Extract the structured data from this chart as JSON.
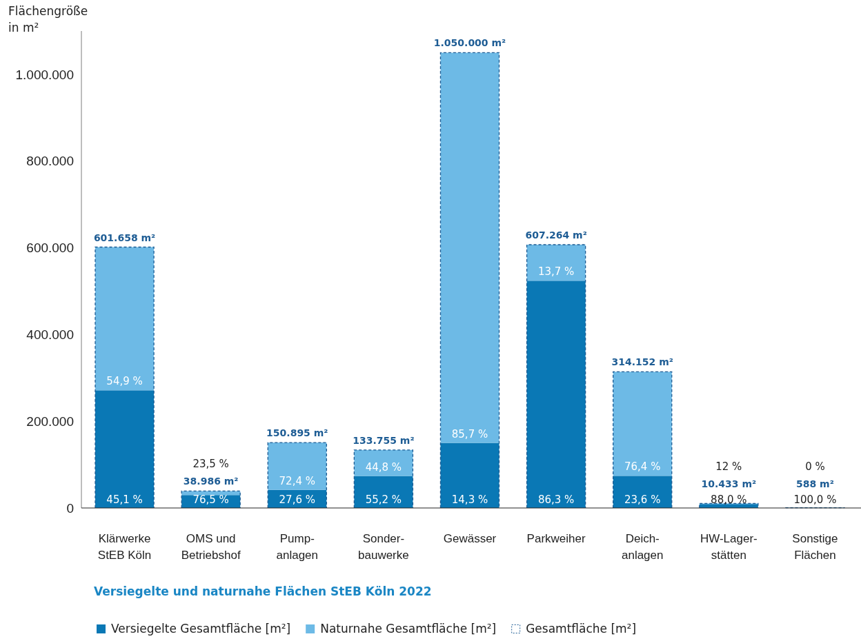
{
  "chart_data": {
    "type": "bar",
    "title": "Versiegelte und naturnahe Flächen StEB Köln 2022",
    "ylabel": "Flächengröße\nin m²",
    "categories": [
      "Klärwerke\nStEB Köln",
      "OMS und\nBetriebshof",
      "Pump-\nanlagen",
      "Sonder-\nbauwerke",
      "Gewässer",
      "Parkweiher",
      "Deich-\nanlagen",
      "HW-Lager-\nstätten",
      "Sonstige\nFlächen"
    ],
    "stacked": true,
    "series": [
      {
        "name": "Versiegelte Gesamtfläche [m²]",
        "color": "#0a78b5",
        "values": [
          271348,
          29824,
          41647,
          73833,
          150150,
          524069,
          74140,
          9181,
          588
        ]
      },
      {
        "name": "Naturnahe Gesamtfläche [m²]",
        "color": "#6dbae6",
        "values": [
          330310,
          9162,
          109248,
          59922,
          899850,
          83195,
          240012,
          1252,
          0
        ]
      }
    ],
    "totals": [
      "601.658 m²",
      "38.986 m²",
      "150.895 m²",
      "133.755 m²",
      "1.050.000 m²",
      "607.264 m²",
      "314.152 m²",
      "10.433 m²",
      "588 m²"
    ],
    "annotations": [
      {
        "text": "45,1 %",
        "x": "Klärwerke\nStEB Köln",
        "y": 0
      },
      {
        "text": "54,9 %",
        "x": "Klärwerke\nStEB Köln",
        "y": 271348
      },
      {
        "text": "76,5 %",
        "x": "OMS und\nBetriebshof",
        "y": 0
      },
      "23,5 %",
      {
        "text": "27,6 %",
        "x": "Pump-\nanlagen",
        "y": 0
      },
      {
        "text": "72,4 %",
        "x": "Pump-\nanlagen",
        "y": 41647
      },
      {
        "text": "55,2 %",
        "x": "Sonder-\nbauwerke",
        "y": 0
      },
      {
        "text": "44,8 %",
        "x": "Sonder-\nbauwerke",
        "y": 73833
      },
      {
        "text": "14,3 %",
        "x": "Gewässer",
        "y": 0
      },
      {
        "text": "85,7 %",
        "x": "Gewässer",
        "y": 150150
      },
      {
        "text": "86,3 %",
        "x": "Parkweiher",
        "y": 0
      },
      {
        "text": "13,7 %",
        "x": "Parkweiher",
        "y": 524069
      },
      {
        "text": "23,6 %",
        "x": "Deich-\nanlagen",
        "y": 0
      },
      {
        "text": "76,4 %",
        "x": "Deich-\nanlagen",
        "y": 74140
      },
      {
        "text": "88,0 %",
        "x": "HW-Lager-\nstätten",
        "y": 0
      },
      "12 %",
      {
        "text": "100,0 %",
        "x": "Sonstige\nFlächen",
        "y": 0
      },
      "0 %",
      "Gesamtfläche [m²]"
    ],
    "ylim": [
      0,
      1100000
    ],
    "yticks": [
      0,
      {
        "value": 200000,
        "label": "200.000"
      },
      {
        "value": 400000,
        "label": "400.000"
      },
      {
        "value": 600000,
        "label": "600.000"
      },
      {
        "value": 800000,
        "label": "800.000"
      },
      {
        "value": 1000000,
        "label": "1.000.000"
      }
    ],
    "grid": false,
    "legend": "bottom",
    "line_style": "dashed"
  }
}
